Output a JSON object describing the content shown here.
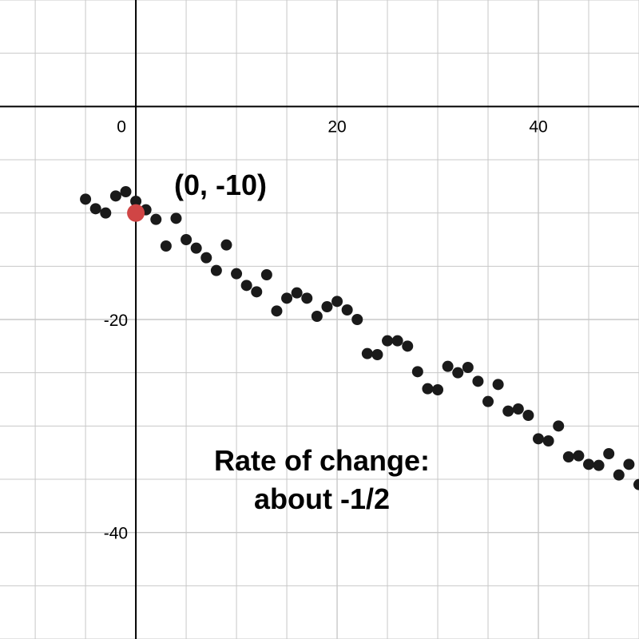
{
  "chart_data": {
    "type": "scatter",
    "title": "",
    "xlabel": "",
    "ylabel": "",
    "xlim": [
      -13.5,
      50
    ],
    "ylim": [
      -50,
      10
    ],
    "grid": true,
    "x_ticks": [
      0,
      20,
      40
    ],
    "y_ticks": [
      -20,
      -40
    ],
    "x_tick_labels": [
      "0",
      "20",
      "40"
    ],
    "y_tick_labels": [
      "-20",
      "-40"
    ],
    "point_color": "#1a1a1a",
    "highlight_color": "#d04545",
    "axis_color": "#000000",
    "grid_color": "#c8c8c8",
    "series": [
      {
        "points": [
          [
            -5,
            -8.7
          ],
          [
            -4,
            -9.6
          ],
          [
            -3,
            -10
          ],
          [
            -2,
            -8.4
          ],
          [
            -1,
            -8
          ],
          [
            0,
            -8.9
          ],
          [
            1,
            -9.7
          ],
          [
            2,
            -10.6
          ],
          [
            3,
            -13.1
          ],
          [
            4,
            -10.5
          ],
          [
            5,
            -12.5
          ],
          [
            6,
            -13.3
          ],
          [
            7,
            -14.2
          ],
          [
            8,
            -15.4
          ],
          [
            9,
            -13
          ],
          [
            10,
            -15.7
          ],
          [
            11,
            -16.8
          ],
          [
            12,
            -17.4
          ],
          [
            13,
            -15.8
          ],
          [
            14,
            -19.2
          ],
          [
            15,
            -18
          ],
          [
            16,
            -17.5
          ],
          [
            17,
            -18
          ],
          [
            18,
            -19.7
          ],
          [
            19,
            -18.8
          ],
          [
            20,
            -18.3
          ],
          [
            21,
            -19.1
          ],
          [
            22,
            -20
          ],
          [
            23,
            -23.2
          ],
          [
            24,
            -23.3
          ],
          [
            25,
            -22
          ],
          [
            26,
            -22
          ],
          [
            27,
            -22.5
          ],
          [
            28,
            -24.9
          ],
          [
            29,
            -26.5
          ],
          [
            30,
            -26.6
          ],
          [
            31,
            -24.4
          ],
          [
            32,
            -25
          ],
          [
            33,
            -24.5
          ],
          [
            34,
            -25.8
          ],
          [
            35,
            -27.7
          ],
          [
            36,
            -26.1
          ],
          [
            37,
            -28.6
          ],
          [
            38,
            -28.4
          ],
          [
            39,
            -29
          ],
          [
            40,
            -31.2
          ],
          [
            41,
            -31.4
          ],
          [
            42,
            -30
          ],
          [
            43,
            -32.9
          ],
          [
            44,
            -32.8
          ],
          [
            45,
            -33.6
          ],
          [
            46,
            -33.7
          ],
          [
            47,
            -32.6
          ],
          [
            48,
            -34.6
          ],
          [
            49,
            -33.6
          ],
          [
            50,
            -35.5
          ]
        ]
      }
    ],
    "highlight_point": {
      "x": 0,
      "y": -10,
      "label": "(0, -10)"
    },
    "annotation": [
      "Rate of change:",
      "about -1/2"
    ]
  }
}
